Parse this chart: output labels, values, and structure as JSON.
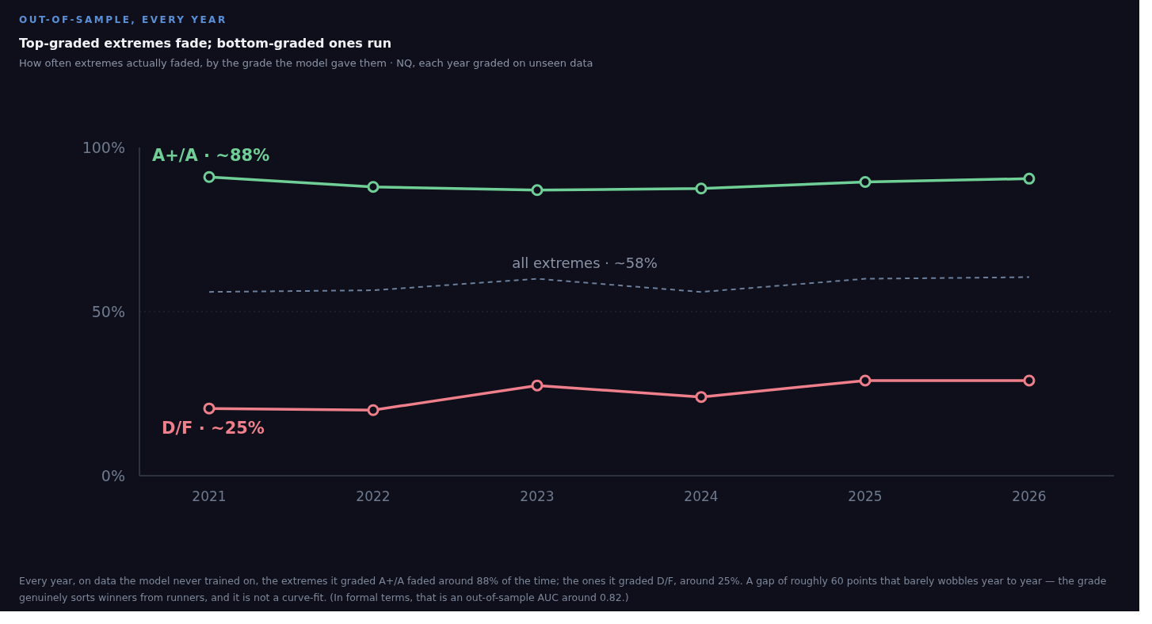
{
  "chart_data": {
    "type": "line",
    "title": "Top-graded extremes fade; bottom-graded ones run",
    "subtitle": "How often extremes actually faded, by the grade the model gave them · NQ, each year graded on unseen data",
    "annotations": [
      "OUT-OF-SAMPLE, EVERY YEAR",
      "Every year, on data the model never trained on, the extremes it graded A+/A faded around 88% of the time; the ones it graded D/F, around 25%. A gap of roughly 60 points that barely wobbles year to year — the grade genuinely sorts winners from runners, and it is not a curve-fit. (In formal terms, that is an out-of-sample AUC around 0.82.)"
    ],
    "categories": [
      "2021",
      "2022",
      "2023",
      "2024",
      "2025",
      "2026"
    ],
    "series": [
      {
        "name": "A+/A · ~88%",
        "color": "#6fcf97",
        "marker": "circle",
        "line_style": "solid",
        "values": [
          91,
          88,
          87,
          87.5,
          89.5,
          90.5
        ]
      },
      {
        "name": "all extremes · ~58%",
        "color": "#6b7f9c",
        "marker": "none",
        "line_style": "dashed",
        "values": [
          56,
          56.5,
          60,
          56,
          60,
          60.5
        ]
      },
      {
        "name": "D/F · ~25%",
        "color": "#ef7f8a",
        "marker": "circle",
        "line_style": "solid",
        "values": [
          20.5,
          20,
          27.5,
          24,
          29,
          29
        ]
      }
    ],
    "ylim": [
      0,
      100
    ],
    "yticks": [
      {
        "value": 0,
        "label": "0%"
      },
      {
        "value": 50,
        "label": "50%"
      },
      {
        "value": 100,
        "label": "100%"
      }
    ],
    "ref_lines": [
      {
        "axis": "y",
        "value": 50,
        "label": null,
        "color": "#2a2f3a",
        "line_style": "dotted"
      }
    ],
    "grid": false,
    "legend": false
  }
}
